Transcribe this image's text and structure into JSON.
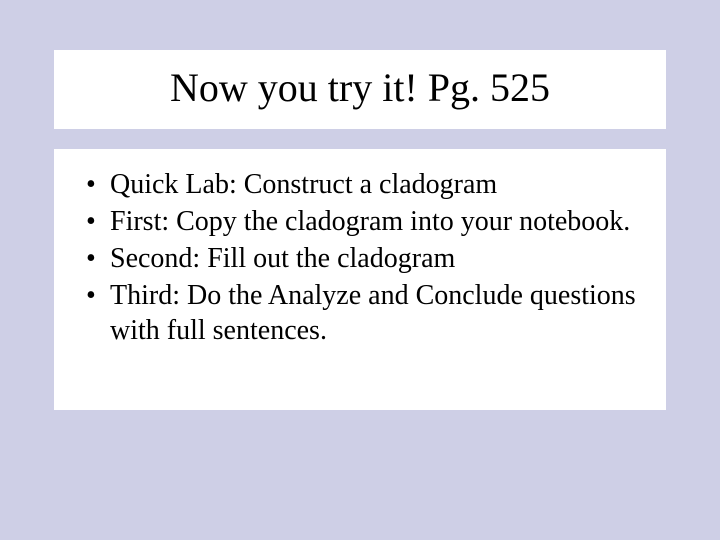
{
  "background_color": "#cecfe6",
  "panel_color": "#ffffff",
  "text_color": "#000000",
  "font_family": "Times New Roman",
  "title": {
    "text": "Now you try it! Pg. 525",
    "fontsize": 40
  },
  "bullets": {
    "fontsize": 28,
    "items": [
      "Quick Lab: Construct a cladogram",
      "First: Copy the cladogram into your notebook.",
      "Second: Fill out the cladogram",
      "Third: Do the Analyze and Conclude questions with full sentences."
    ]
  }
}
